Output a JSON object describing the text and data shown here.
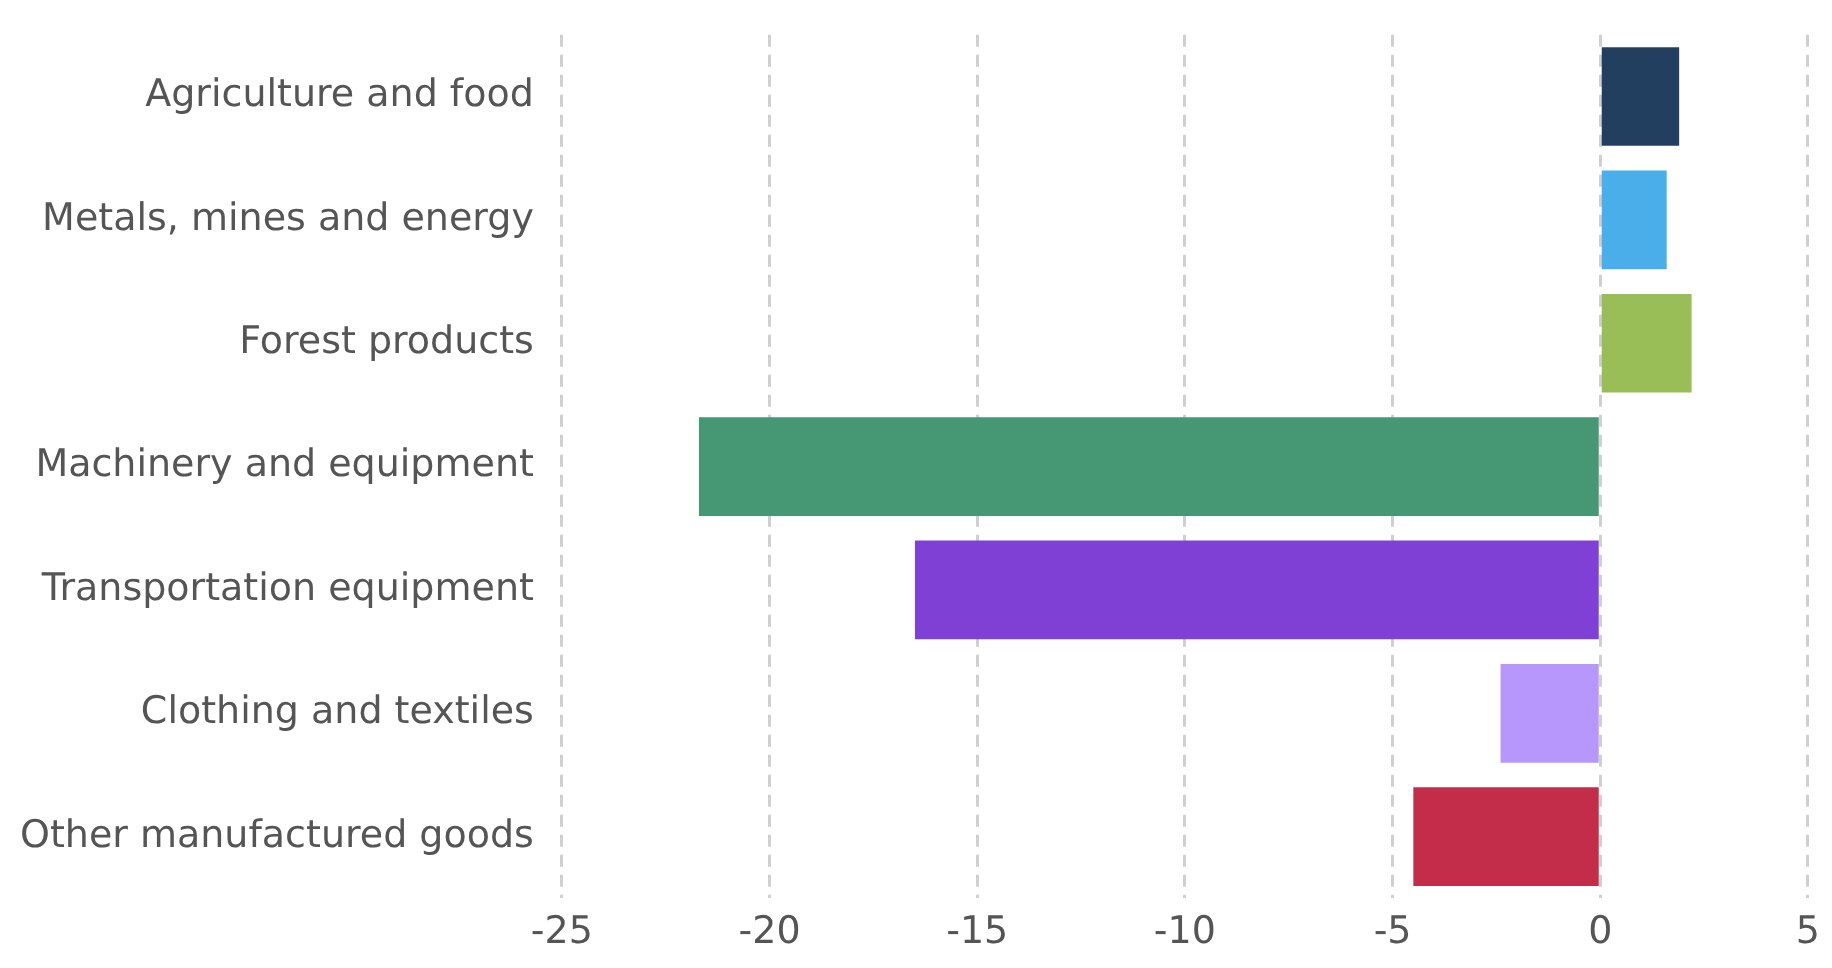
{
  "chart_data": {
    "type": "bar",
    "orientation": "horizontal",
    "categories": [
      "Agriculture and food",
      "Metals, mines and energy",
      "Forest products",
      "Machinery and equipment",
      "Transportation equipment",
      "Clothing and textiles",
      "Other manufactured goods"
    ],
    "values": [
      1.9,
      1.6,
      2.2,
      -21.7,
      -16.5,
      -2.4,
      -4.5
    ],
    "colors": [
      "#233f60",
      "#4aaeea",
      "#9abe57",
      "#459873",
      "#7f40d6",
      "#b897fc",
      "#c32d49"
    ],
    "xlim": [
      -25,
      5
    ],
    "xticks": [
      -25,
      -20,
      -15,
      -10,
      -5,
      0,
      5
    ],
    "grid": "x",
    "legend": false
  }
}
